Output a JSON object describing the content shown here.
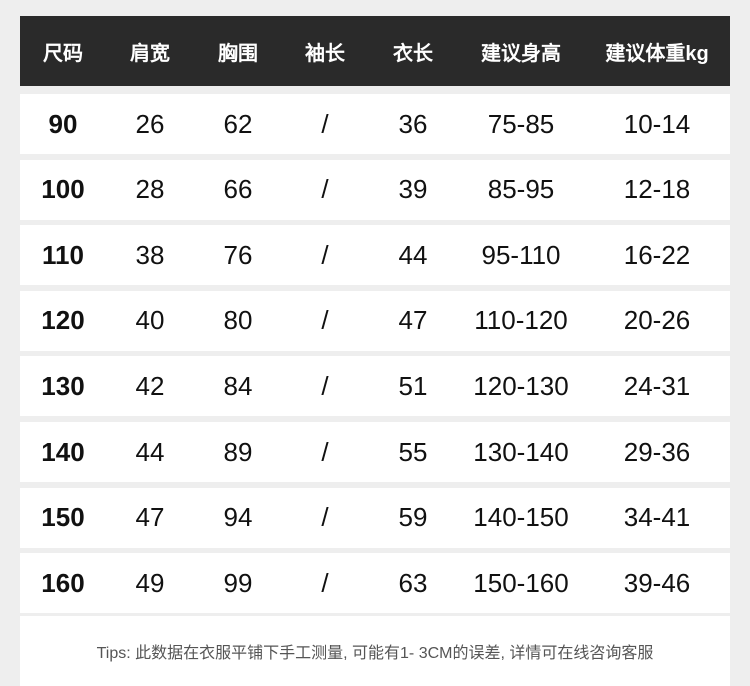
{
  "header": {
    "columns": [
      "尺码",
      "肩宽",
      "胸围",
      "袖长",
      "衣长",
      "建议身高",
      "建议体重kg"
    ]
  },
  "table": {
    "rows": [
      [
        "90",
        "26",
        "62",
        "/",
        "36",
        "75-85",
        "10-14"
      ],
      [
        "100",
        "28",
        "66",
        "/",
        "39",
        "85-95",
        "12-18"
      ],
      [
        "110",
        "38",
        "76",
        "/",
        "44",
        "95-110",
        "16-22"
      ],
      [
        "120",
        "40",
        "80",
        "/",
        "47",
        "110-120",
        "20-26"
      ],
      [
        "130",
        "42",
        "84",
        "/",
        "51",
        "120-130",
        "24-31"
      ],
      [
        "140",
        "44",
        "89",
        "/",
        "55",
        "130-140",
        "29-36"
      ],
      [
        "150",
        "47",
        "94",
        "/",
        "59",
        "140-150",
        "34-41"
      ],
      [
        "160",
        "49",
        "99",
        "/",
        "63",
        "150-160",
        "39-46"
      ]
    ]
  },
  "footer": {
    "tips": "Tips: 此数据在衣服平铺下手工测量, 可能有1- 3CM的误差, 详情可在线咨询客服"
  }
}
